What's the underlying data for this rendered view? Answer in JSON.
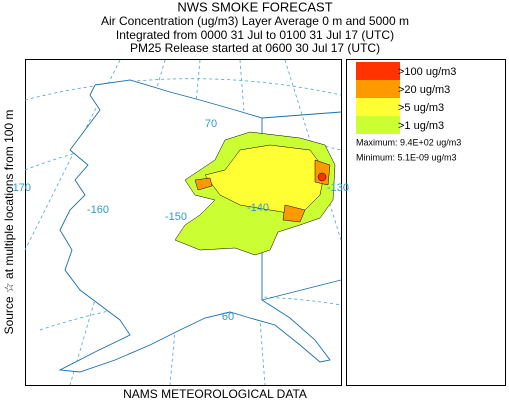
{
  "header": {
    "title": "NWS SMOKE FORECAST",
    "lines": [
      "Air Concentration (ug/m3) Layer Average    0 m and  5000 m",
      "Integrated from 0000 31 Jul to 0100 31 Jul 17 (UTC)",
      "PM25 Release started at 0600 30 Jul 17 (UTC)"
    ]
  },
  "side_label": "Source ☆ at multiple locations   from   100 m",
  "legend": {
    "entries": [
      {
        "label": ">100 ug/m3",
        "color": "#ff3300"
      },
      {
        "label": ">20 ug/m3",
        "color": "#ff9900"
      },
      {
        "label": ">5 ug/m3",
        "color": "#ffff33"
      },
      {
        "label": ">1 ug/m3",
        "color": "#ccff33"
      }
    ],
    "maximum": "Maximum: 9.4E+02 ug/m3",
    "minimum": "Minimum: 5.1E-09 ug/m3"
  },
  "map": {
    "labels": [
      "70",
      "-170",
      "-160",
      "-150",
      "-140",
      "-130",
      "60"
    ]
  },
  "footer": "NAMS METEOROLOGICAL DATA"
}
